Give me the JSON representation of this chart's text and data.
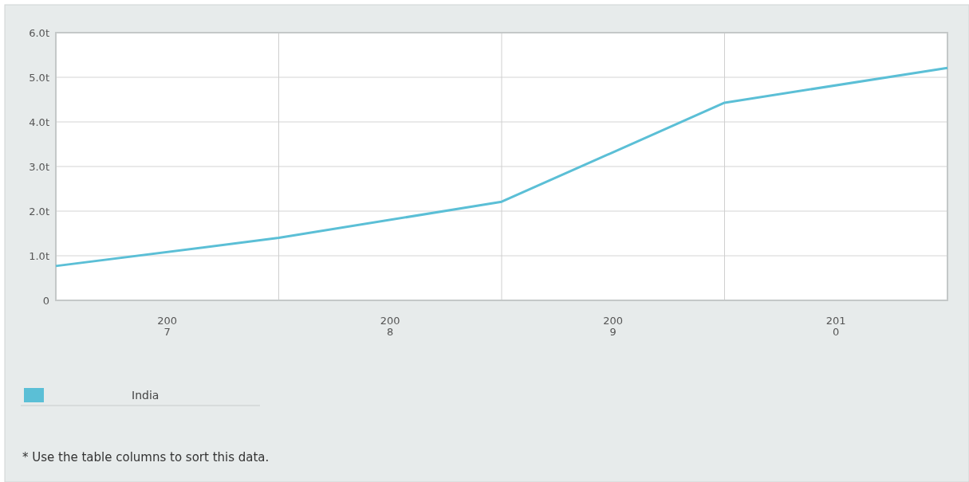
{
  "chart_data": {
    "type": "line",
    "x": [
      2007,
      2008,
      2009,
      2010,
      2011
    ],
    "series": [
      {
        "name": "India",
        "color": "#5bbfd6",
        "values": [
          0.77,
          1.4,
          2.21,
          4.43,
          5.21
        ]
      }
    ],
    "xlim": [
      2007,
      2011
    ],
    "xticks": [
      {
        "value": 2007.5,
        "label": "2007"
      },
      {
        "value": 2008,
        "label": null
      },
      {
        "value": 2008.5,
        "label": "2008"
      },
      {
        "value": 2009,
        "label": null
      },
      {
        "value": 2009.5,
        "label": "2009"
      },
      {
        "value": 2010,
        "label": null
      },
      {
        "value": 2010.5,
        "label": "2010"
      }
    ],
    "ylim": [
      0,
      6
    ],
    "yticks": [
      {
        "value": 0,
        "label": "0"
      },
      {
        "value": 1,
        "label": "1.0t"
      },
      {
        "value": 2,
        "label": "2.0t"
      },
      {
        "value": 3,
        "label": "3.0t"
      },
      {
        "value": 4,
        "label": "4.0t"
      },
      {
        "value": 5,
        "label": "5.0t"
      },
      {
        "value": 6,
        "label": "6.0t"
      }
    ],
    "grid": true,
    "legend": "bottom left",
    "marker": "none",
    "line_style": "solid",
    "annotations": [
      "* Use the table columns to sort this data."
    ]
  }
}
